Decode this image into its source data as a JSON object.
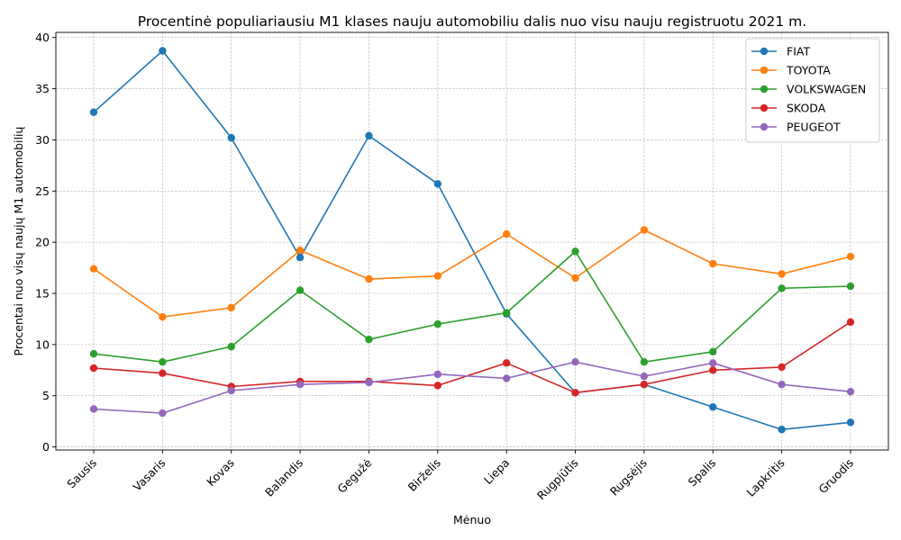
{
  "chart_data": {
    "type": "line",
    "title": "Procentinė populiariausiu M1 klases nauju automobiliu dalis nuo visu nauju registruotu 2021 m.",
    "xlabel": "Mėnuo",
    "ylabel": "Procentai nuo visų naujų M1 automobilių",
    "categories": [
      "Sausis",
      "Vasaris",
      "Kovas",
      "Balandis",
      "Gegužė",
      "Birželis",
      "Liepa",
      "Rugpjūtis",
      "Rugsėjis",
      "Spalis",
      "Lapkritis",
      "Gruodis"
    ],
    "ylim": [
      -0.3,
      40.5
    ],
    "yticks": [
      0,
      5,
      10,
      15,
      20,
      25,
      30,
      35,
      40
    ],
    "grid": true,
    "legend_position": "top-right",
    "series": [
      {
        "name": "FIAT",
        "color": "#1f77b4",
        "values": [
          32.7,
          38.7,
          30.2,
          18.5,
          30.4,
          25.7,
          13.0,
          5.3,
          6.1,
          3.9,
          1.7,
          2.4
        ]
      },
      {
        "name": "TOYOTA",
        "color": "#ff7f0e",
        "values": [
          17.4,
          12.7,
          13.6,
          19.2,
          16.4,
          16.7,
          20.8,
          16.5,
          21.2,
          17.9,
          16.9,
          18.6
        ]
      },
      {
        "name": "VOLKSWAGEN",
        "color": "#2ca02c",
        "values": [
          9.1,
          8.3,
          9.8,
          15.3,
          10.5,
          12.0,
          13.1,
          19.1,
          8.3,
          9.3,
          15.5,
          15.7
        ]
      },
      {
        "name": "SKODA",
        "color": "#d62728",
        "values": [
          7.7,
          7.2,
          5.9,
          6.4,
          6.4,
          6.0,
          8.2,
          5.3,
          6.1,
          7.5,
          7.8,
          12.2
        ]
      },
      {
        "name": "PEUGEOT",
        "color": "#9467bd",
        "values": [
          3.7,
          3.3,
          5.5,
          6.1,
          6.3,
          7.1,
          6.7,
          8.3,
          6.9,
          8.2,
          6.1,
          5.4
        ]
      }
    ]
  }
}
